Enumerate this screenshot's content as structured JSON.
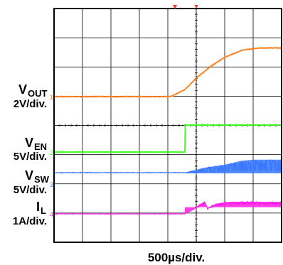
{
  "chart_data": {
    "type": "line",
    "title": "",
    "xlabel": "500µs/div.",
    "grid": true,
    "x_divisions": 8,
    "y_divisions": 8,
    "colors": {
      "vout": "#ff7f1e",
      "ven": "#3cff1e",
      "vsw": "#3a78ff",
      "il": "#ff1ee6",
      "grid": "#000000",
      "trigger": "#ff3c1e"
    },
    "channels": [
      {
        "key": "vout",
        "label_main": "V",
        "label_sub": "OUT",
        "scale": "2V/div.",
        "marker": "1"
      },
      {
        "key": "ven",
        "label_main": "V",
        "label_sub": "EN",
        "scale": "5V/div.",
        "marker": "2"
      },
      {
        "key": "vsw",
        "label_main": "V",
        "label_sub": "SW",
        "scale": "5V/div.",
        "marker": "3"
      },
      {
        "key": "il",
        "label_main": "I",
        "label_sub": "L",
        "scale": "1A/div.",
        "marker": "4"
      }
    ],
    "series": [
      {
        "key": "vout",
        "x": [
          -3.3,
          -0.9,
          -0.4,
          0,
          0.5,
          1.0,
          1.6,
          2.2,
          2.8,
          4.7
        ],
        "y": [
          0,
          0,
          0.6,
          1.6,
          2.6,
          3.4,
          4.0,
          4.2,
          4.2,
          4.2
        ]
      },
      {
        "key": "ven",
        "x": [
          -3.3,
          -0.4,
          -0.4,
          4.7
        ],
        "y": [
          0,
          0,
          5,
          5
        ]
      },
      {
        "key": "vsw",
        "x": [
          -3.3,
          -0.4,
          0.3,
          1.0,
          1.6,
          2.0,
          4.7
        ],
        "y": [
          0,
          0,
          2.5,
          4,
          6,
          6.5,
          6.5
        ]
      },
      {
        "key": "il",
        "x": [
          -3.3,
          -0.4,
          0.3,
          0.4,
          0.7,
          1.2,
          2.0,
          4.7
        ],
        "y": [
          0,
          0,
          1.05,
          0.5,
          0.85,
          1.0,
          1.0,
          1.0
        ]
      }
    ]
  }
}
